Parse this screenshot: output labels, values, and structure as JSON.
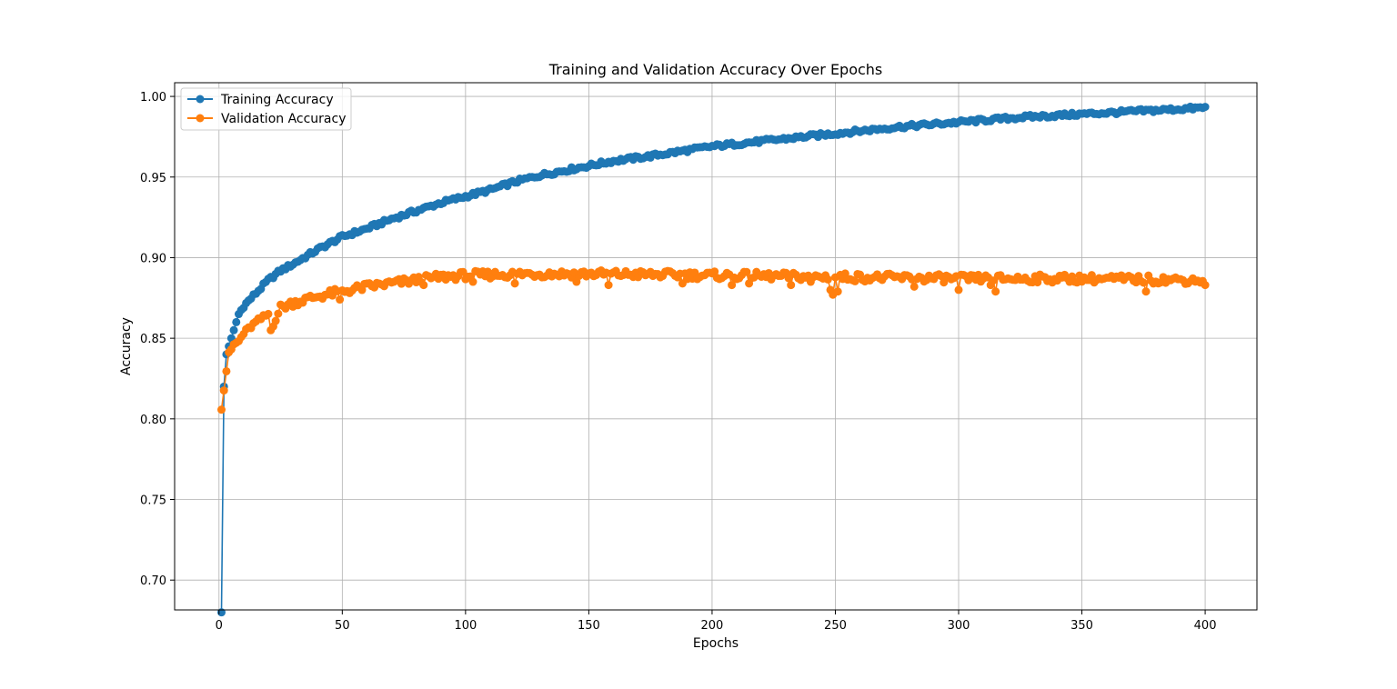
{
  "chart_data": {
    "type": "line",
    "title": "Training and Validation Accuracy Over Epochs",
    "xlabel": "Epochs",
    "ylabel": "Accuracy",
    "xlim": [
      -18,
      421
    ],
    "ylim": [
      0.6815,
      1.0085
    ],
    "grid": true,
    "legend_position": "top-left",
    "x_ticks": [
      0,
      50,
      100,
      150,
      200,
      250,
      300,
      350,
      400
    ],
    "y_ticks": [
      0.7,
      0.75,
      0.8,
      0.85,
      0.9,
      0.95,
      1.0
    ],
    "x_tick_labels": [
      "0",
      "50",
      "100",
      "150",
      "200",
      "250",
      "300",
      "350",
      "400"
    ],
    "y_tick_labels": [
      "0.70",
      "0.75",
      "0.80",
      "0.85",
      "0.90",
      "0.95",
      "1.00"
    ],
    "epochs": {
      "start": 1,
      "end": 400,
      "step": 1
    },
    "series": [
      {
        "name": "Training Accuracy",
        "color": "#1f77b4",
        "marker": "circle",
        "key_points": [
          [
            1,
            0.68
          ],
          [
            2,
            0.82
          ],
          [
            3,
            0.84
          ],
          [
            5,
            0.85
          ],
          [
            8,
            0.865
          ],
          [
            10,
            0.87
          ],
          [
            15,
            0.878
          ],
          [
            20,
            0.886
          ],
          [
            25,
            0.892
          ],
          [
            30,
            0.896
          ],
          [
            40,
            0.905
          ],
          [
            50,
            0.913
          ],
          [
            60,
            0.918
          ],
          [
            70,
            0.924
          ],
          [
            80,
            0.929
          ],
          [
            90,
            0.934
          ],
          [
            100,
            0.938
          ],
          [
            110,
            0.942
          ],
          [
            120,
            0.947
          ],
          [
            130,
            0.951
          ],
          [
            140,
            0.954
          ],
          [
            150,
            0.957
          ],
          [
            160,
            0.96
          ],
          [
            175,
            0.963
          ],
          [
            200,
            0.969
          ],
          [
            225,
            0.973
          ],
          [
            250,
            0.977
          ],
          [
            275,
            0.981
          ],
          [
            300,
            0.984
          ],
          [
            325,
            0.987
          ],
          [
            350,
            0.989
          ],
          [
            375,
            0.991
          ],
          [
            400,
            0.993
          ]
        ]
      },
      {
        "name": "Validation Accuracy",
        "color": "#ff7f0e",
        "marker": "circle",
        "key_points": [
          [
            1,
            0.807
          ],
          [
            2,
            0.818
          ],
          [
            3,
            0.83
          ],
          [
            4,
            0.84
          ],
          [
            6,
            0.846
          ],
          [
            8,
            0.848
          ],
          [
            10,
            0.853
          ],
          [
            15,
            0.86
          ],
          [
            20,
            0.865
          ],
          [
            21,
            0.855
          ],
          [
            25,
            0.869
          ],
          [
            30,
            0.872
          ],
          [
            40,
            0.876
          ],
          [
            50,
            0.879
          ],
          [
            60,
            0.882
          ],
          [
            70,
            0.884
          ],
          [
            80,
            0.886
          ],
          [
            90,
            0.888
          ],
          [
            100,
            0.889
          ],
          [
            125,
            0.89
          ],
          [
            150,
            0.89
          ],
          [
            200,
            0.889
          ],
          [
            250,
            0.888
          ],
          [
            300,
            0.887
          ],
          [
            350,
            0.887
          ],
          [
            400,
            0.886
          ]
        ],
        "outliers": [
          [
            49,
            0.874
          ],
          [
            83,
            0.883
          ],
          [
            103,
            0.885
          ],
          [
            120,
            0.884
          ],
          [
            145,
            0.885
          ],
          [
            158,
            0.883
          ],
          [
            188,
            0.884
          ],
          [
            208,
            0.883
          ],
          [
            215,
            0.884
          ],
          [
            232,
            0.883
          ],
          [
            240,
            0.885
          ],
          [
            248,
            0.88
          ],
          [
            249,
            0.877
          ],
          [
            251,
            0.879
          ],
          [
            282,
            0.882
          ],
          [
            300,
            0.88
          ],
          [
            313,
            0.883
          ],
          [
            315,
            0.879
          ],
          [
            376,
            0.879
          ],
          [
            400,
            0.883
          ]
        ]
      }
    ]
  }
}
